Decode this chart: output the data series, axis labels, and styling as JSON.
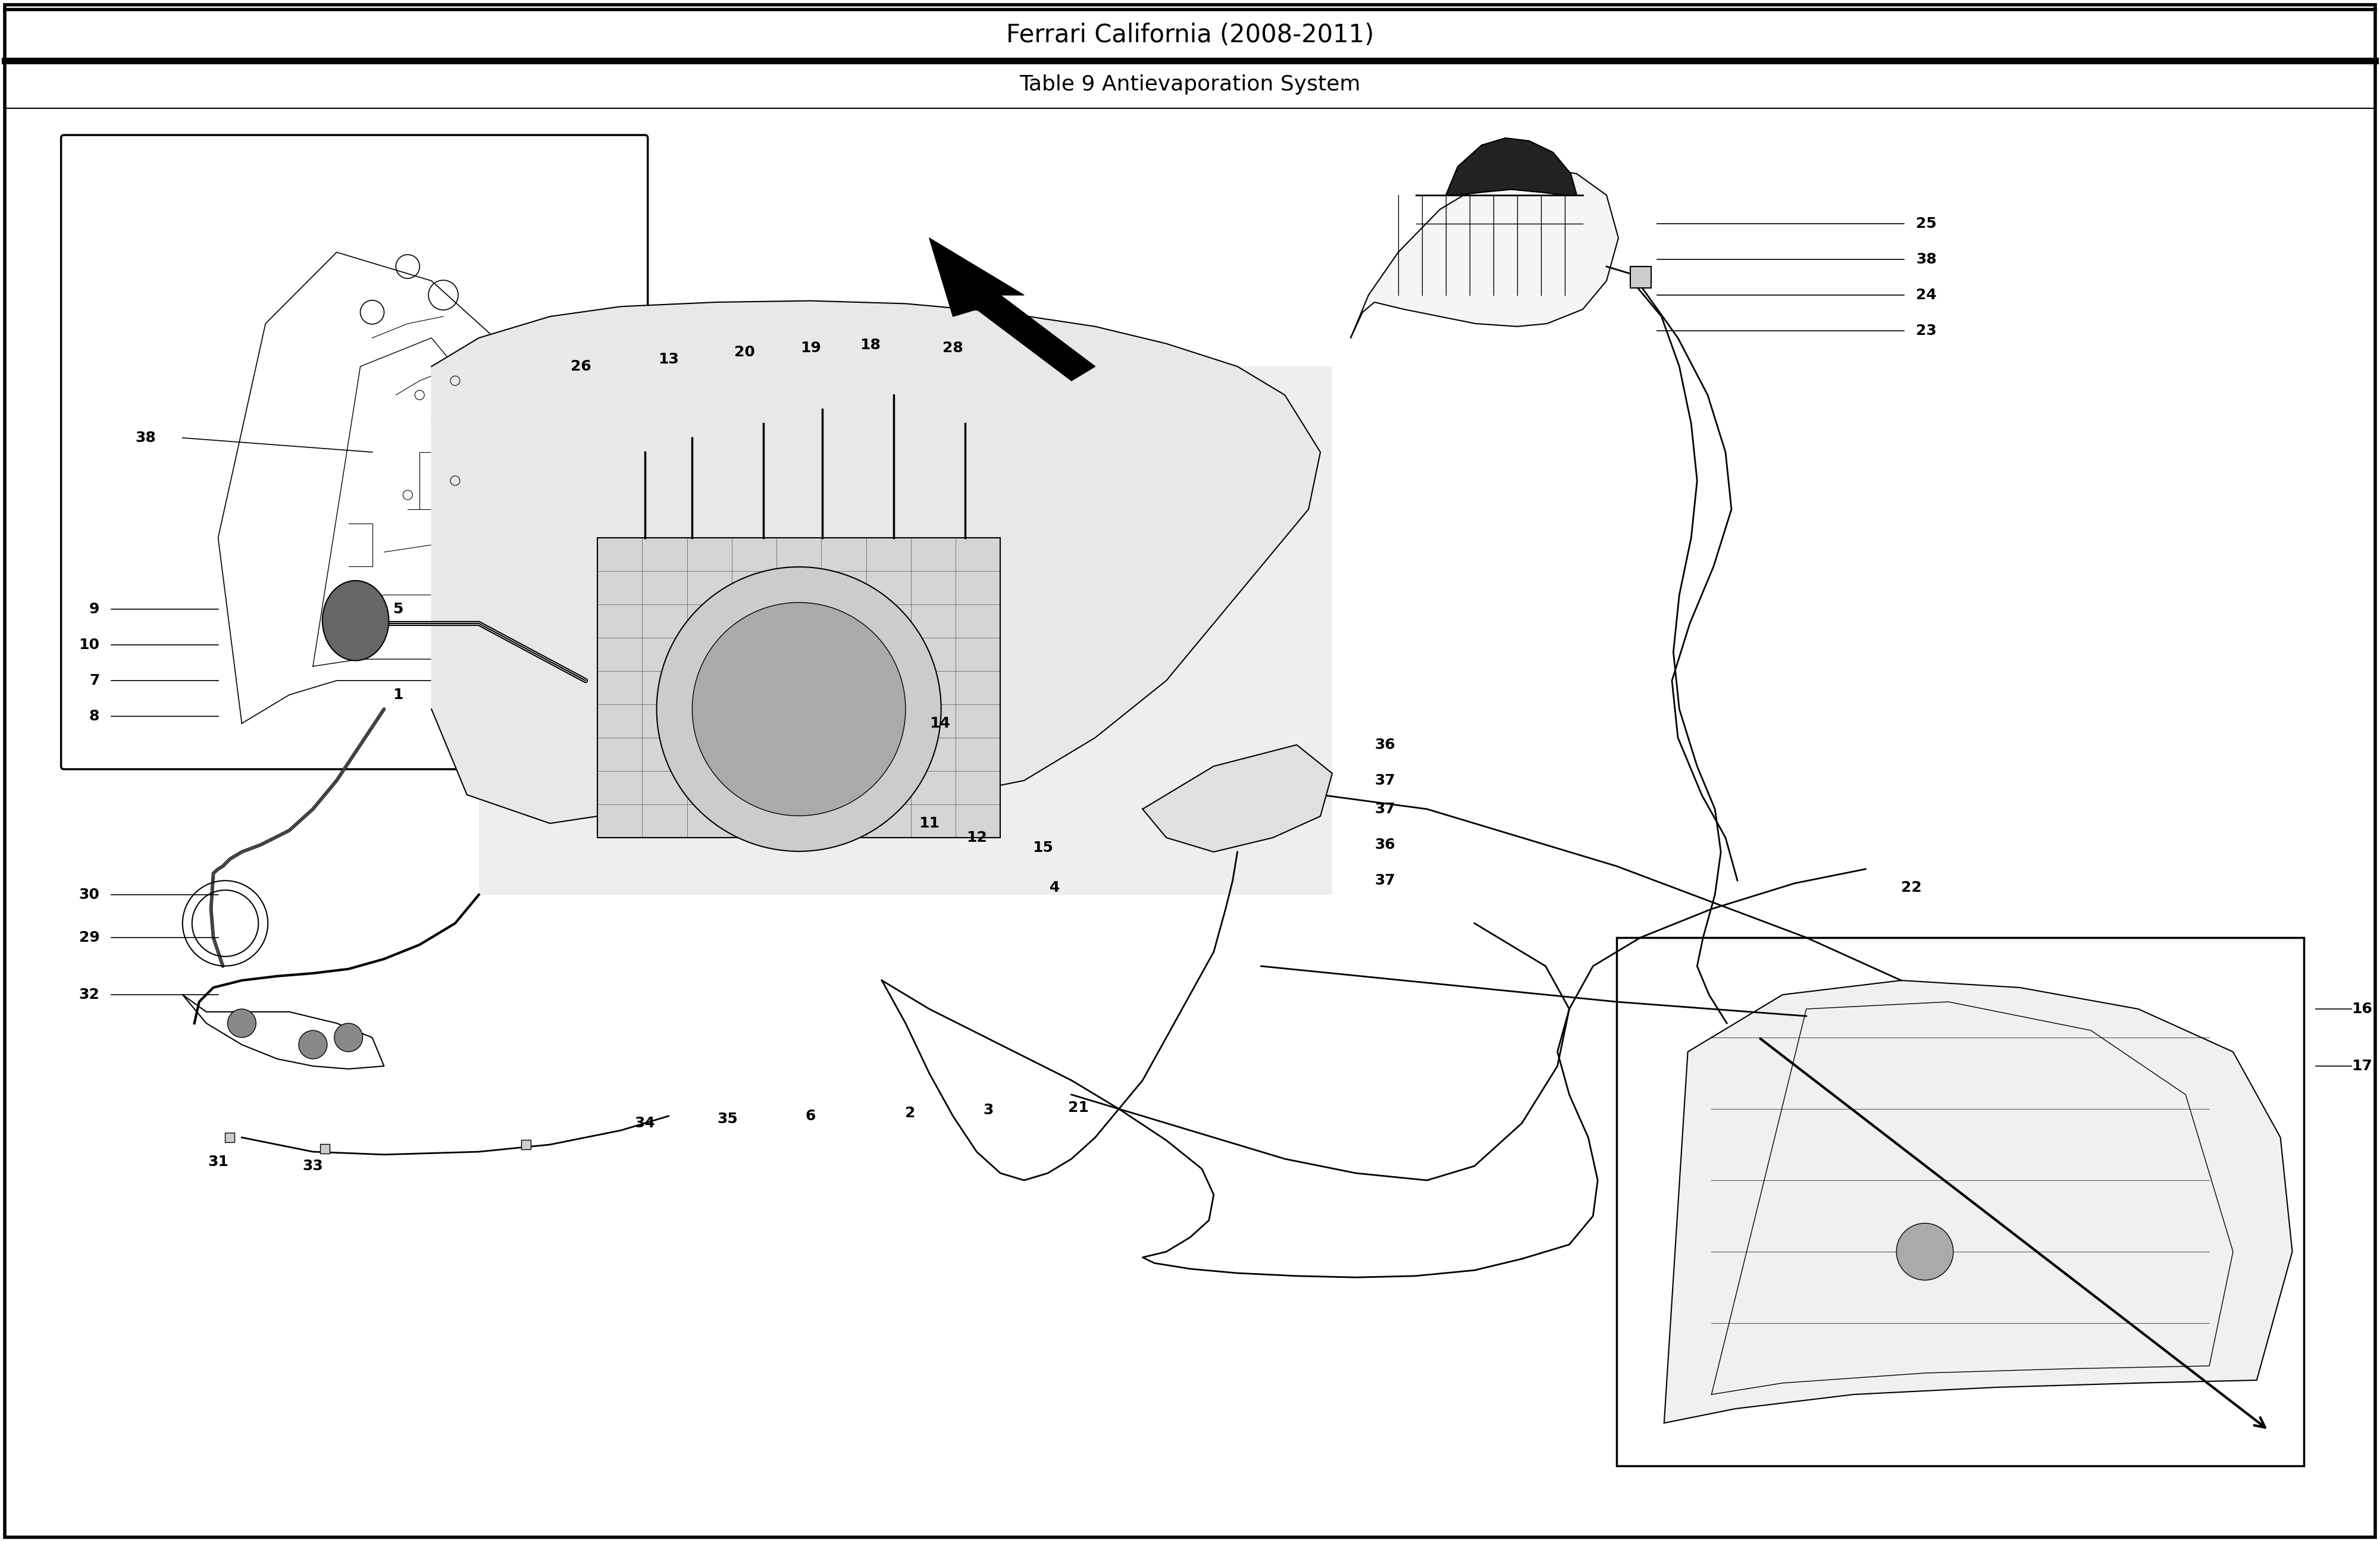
{
  "title": "Ferrari California (2008-2011)",
  "subtitle": "Table 9 Antievaporation System",
  "bg_color": "#ffffff",
  "border_color": "#000000",
  "title_fontsize": 30,
  "subtitle_fontsize": 26,
  "fig_width": 40.0,
  "fig_height": 25.92,
  "outer_border_lw": 4,
  "thick_line_lw": 8,
  "thin_line_lw": 1.5,
  "header_bg": "#ffffff",
  "header_text_color": "#000000",
  "label_fontsize": 18,
  "label_color": "#000000",
  "component_line_color": "#000000",
  "component_fill": "#f0f0f0"
}
